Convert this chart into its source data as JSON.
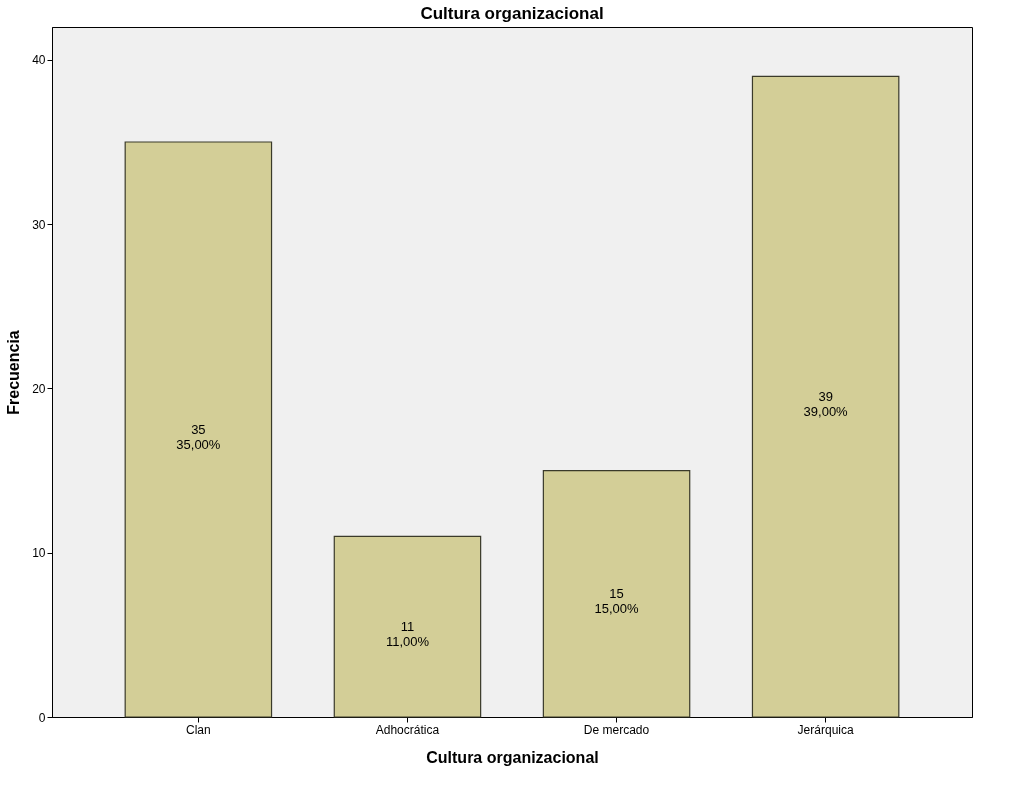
{
  "chart_data": {
    "type": "bar",
    "title": "Cultura organizacional",
    "xlabel": "Cultura organizacional",
    "ylabel": "Frecuencia",
    "categories": [
      "Clan",
      "Adhocrática",
      "De mercado",
      "Jerárquica"
    ],
    "values": [
      35,
      11,
      15,
      39
    ],
    "value_labels": [
      "35\n35,00%",
      "11\n11,00%",
      "15\n15,00%",
      "39\n39,00%"
    ],
    "color": "#d3ce97",
    "ylim": [
      0,
      42
    ],
    "yticks": [
      0,
      10,
      20,
      30,
      40
    ],
    "grid": false
  }
}
